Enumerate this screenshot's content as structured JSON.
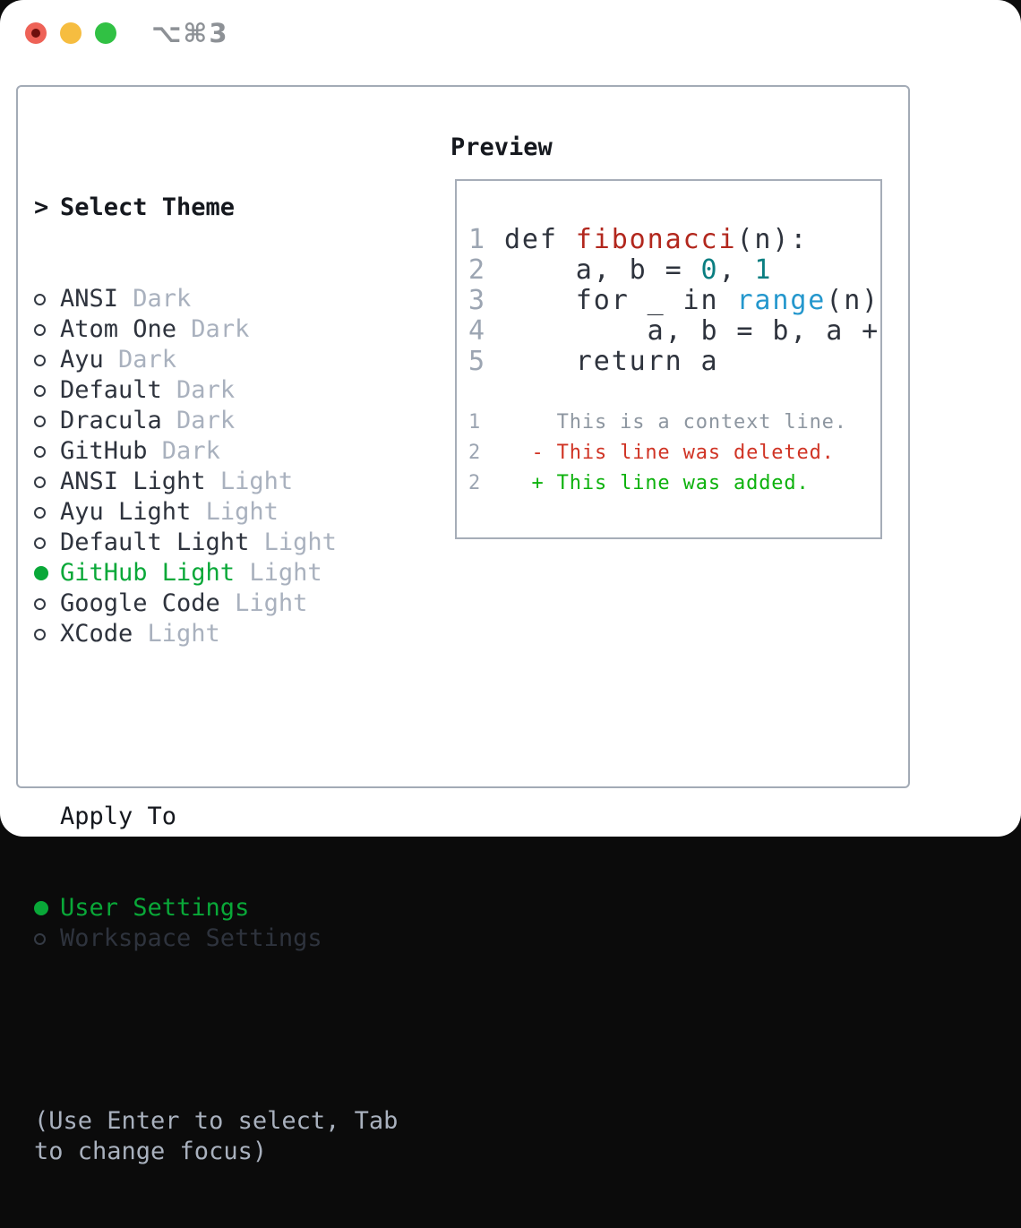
{
  "window": {
    "title": "⌥⌘3",
    "traffic_lights": [
      "close",
      "minimize",
      "zoom"
    ]
  },
  "theme_list": {
    "prompt": ">",
    "header": "Select Theme",
    "items": [
      {
        "name": "ANSI",
        "variant": "Dark",
        "selected": false
      },
      {
        "name": "Atom One",
        "variant": "Dark",
        "selected": false
      },
      {
        "name": "Ayu",
        "variant": "Dark",
        "selected": false
      },
      {
        "name": "Default",
        "variant": "Dark",
        "selected": false
      },
      {
        "name": "Dracula",
        "variant": "Dark",
        "selected": false
      },
      {
        "name": "GitHub",
        "variant": "Dark",
        "selected": false
      },
      {
        "name": "ANSI Light",
        "variant": "Light",
        "selected": false
      },
      {
        "name": "Ayu Light",
        "variant": "Light",
        "selected": false
      },
      {
        "name": "Default Light",
        "variant": "Light",
        "selected": false
      },
      {
        "name": "GitHub Light",
        "variant": "Light",
        "selected": true
      },
      {
        "name": "Google Code",
        "variant": "Light",
        "selected": false
      },
      {
        "name": "XCode",
        "variant": "Light",
        "selected": false
      }
    ]
  },
  "apply_to": {
    "header": "Apply To",
    "items": [
      {
        "name": "User Settings",
        "selected": true
      },
      {
        "name": "Workspace Settings",
        "selected": false
      }
    ]
  },
  "help_text": "(Use Enter to select, Tab to change focus)",
  "preview": {
    "label": "Preview",
    "code_lines": [
      {
        "num": "1",
        "segments": [
          {
            "text": "def ",
            "color": "fg"
          },
          {
            "text": "fibonacci",
            "color": "func"
          },
          {
            "text": "(n):",
            "color": "fg"
          }
        ]
      },
      {
        "num": "2",
        "segments": [
          {
            "text": "    a, b = ",
            "color": "fg"
          },
          {
            "text": "0",
            "color": "number"
          },
          {
            "text": ", ",
            "color": "fg"
          },
          {
            "text": "1",
            "color": "number"
          }
        ]
      },
      {
        "num": "3",
        "segments": [
          {
            "text": "    for _ in ",
            "color": "fg"
          },
          {
            "text": "range",
            "color": "builtin"
          },
          {
            "text": "(n):",
            "color": "fg"
          }
        ]
      },
      {
        "num": "4",
        "segments": [
          {
            "text": "        a, b = b, a + b",
            "color": "fg"
          }
        ]
      },
      {
        "num": "5",
        "segments": [
          {
            "text": "    return a",
            "color": "fg"
          }
        ]
      }
    ],
    "diff_lines": [
      {
        "num": "1",
        "prefix": "  ",
        "text": "This is a context line.",
        "color": "context"
      },
      {
        "num": "2",
        "prefix": "- ",
        "text": "This line was deleted.",
        "color": "deleted"
      },
      {
        "num": "2",
        "prefix": "+ ",
        "text": "This line was added.",
        "color": "added"
      }
    ]
  },
  "colors": {
    "fg": "#2e333d",
    "func": "#b2271d",
    "number": "#0a7e81",
    "builtin": "#2497cd",
    "context": "#8d96a0",
    "deleted": "#d03425",
    "added": "#0db20d",
    "selection": "#09a838",
    "muted": "#a9b1be",
    "line_number": "#9ca5b2",
    "title_gray": "#8d9196"
  }
}
